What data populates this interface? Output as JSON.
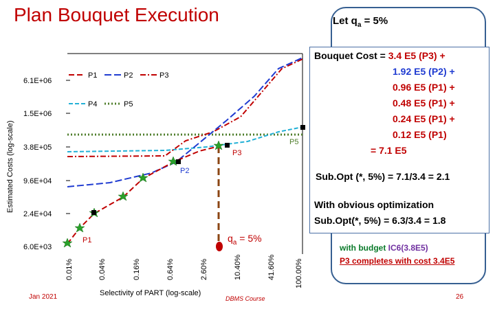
{
  "slide": {
    "title": "Plan Bouquet Execution",
    "footer_left": "Jan 2021",
    "footer_center": "DBMS Course",
    "page_number": "26"
  },
  "let_box": {
    "prefix": "Let q",
    "subscript": "a",
    "suffix": " = 5%"
  },
  "cost_box": {
    "line1_label": "Bouquet Cost = ",
    "line1_value": "3.4  E5 (P3) +",
    "line2": "1.92  E5 (P2) +",
    "line3": "0.96 E5 (P1) +",
    "line4": "0.48 E5 (P1) +",
    "line5": "0.24 E5 (P1) +",
    "line6": "0.12 E5 (P1)",
    "line7": "=  7.1  E5",
    "subopt": "Sub.Opt (*, 5%) = 7.1/3.4 = 2.1",
    "obvious_line1": "With obvious optimization",
    "obvious_line2": "Sub.Opt(*, 5%) = 6.3/3.4 = 1.8"
  },
  "budget_note": {
    "line1_prefix": "with budget ",
    "line1_budget": "IC6(3.8E5)",
    "line2": "P3 completes with cost 3.4E5"
  },
  "chart_data": {
    "type": "line",
    "xlabel": "Selectivity of PART (log-scale)",
    "ylabel": "Estimated Costs (log-scale)",
    "x_ticks": [
      "0.01%",
      "0.04%",
      "0.16%",
      "0.64%",
      "2.60%",
      "10.40%",
      "41.60%",
      "100.00%"
    ],
    "y_ticks": [
      "6.0E+03",
      "2.4E+04",
      "9.6E+04",
      "3.8E+05",
      "1.5E+06",
      "6.1E+06"
    ],
    "legend": [
      "P1",
      "P2",
      "P3",
      "P4",
      "P5"
    ],
    "series_colors": {
      "P1": "#c00000",
      "P2": "#1f3bd1",
      "P3": "#c00000",
      "P4": "#22b0d6",
      "P5": "#4e7d2a"
    },
    "curve_labels": [
      "P1",
      "P2",
      "P3",
      "P5"
    ],
    "marker_label": "q",
    "marker_label_sub": "a",
    "marker_label_suffix": " = 5%"
  }
}
